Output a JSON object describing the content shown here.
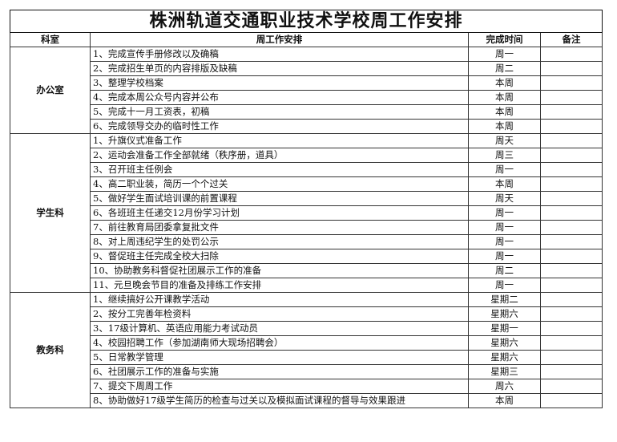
{
  "title": "株洲轨道交通职业技术学校周工作安排",
  "headers": {
    "dept": "科室",
    "task": "周工作安排",
    "time": "完成时间",
    "note": "备注"
  },
  "departments": [
    {
      "name": "办公室",
      "items": [
        {
          "task": "1、完成宣传手册修改以及确稿",
          "time": "周一",
          "note": ""
        },
        {
          "task": "2、完成招生单页的内容排版及缺稿",
          "time": "周二",
          "note": ""
        },
        {
          "task": "3、整理学校档案",
          "time": "本周",
          "note": ""
        },
        {
          "task": "4、完成本周公众号内容并公布",
          "time": "本周",
          "note": ""
        },
        {
          "task": "5、完成十一月工资表，初稿",
          "time": "本周",
          "note": ""
        },
        {
          "task": "6、完成领导交办的临时性工作",
          "time": "本周",
          "note": ""
        }
      ]
    },
    {
      "name": "学生科",
      "items": [
        {
          "task": "1、升旗仪式准备工作",
          "time": "周天",
          "note": ""
        },
        {
          "task": "2、运动会准备工作全部就绪（秩序册，道具）",
          "time": "周三",
          "note": ""
        },
        {
          "task": "3、召开班主任例会",
          "time": "周一",
          "note": ""
        },
        {
          "task": "4、高二职业装，简历一个个过关",
          "time": "本周",
          "note": ""
        },
        {
          "task": "5、做好学生面试培训课的前置课程",
          "time": "周天",
          "note": ""
        },
        {
          "task": "6、各班班主任递交12月份学习计划",
          "time": "周一",
          "note": ""
        },
        {
          "task": "7、前往教育局团委拿复批文件",
          "time": "周一",
          "note": ""
        },
        {
          "task": "8、对上周违纪学生的处罚公示",
          "time": "周一",
          "note": ""
        },
        {
          "task": "9、督促班主任完成全校大扫除",
          "time": "周一",
          "note": ""
        },
        {
          "task": "10、协助教务科督促社团展示工作的准备",
          "time": "周二",
          "note": ""
        },
        {
          "task": "11、元旦晚会节目的准备及排练工作安排",
          "time": "周一",
          "note": ""
        }
      ]
    },
    {
      "name": "教务科",
      "items": [
        {
          "task": "1、继续搞好公开课教学活动",
          "time": "星期二",
          "note": ""
        },
        {
          "task": "2、按分工完善年检资料",
          "time": "星期六",
          "note": ""
        },
        {
          "task": "3、17级计算机、英语应用能力考试动员",
          "time": "星期一",
          "note": ""
        },
        {
          "task": "4、校园招聘工作（参加湖南师大现场招聘会）",
          "time": "星期六",
          "note": ""
        },
        {
          "task": "5、日常教学管理",
          "time": "星期六",
          "note": ""
        },
        {
          "task": "6、社团展示工作的准备与实施",
          "time": "星期三",
          "note": ""
        },
        {
          "task": "7、提交下周周工作",
          "time": "周六",
          "note": ""
        },
        {
          "task": "8、协助做好17级学生简历的检查与过关以及模拟面试课程的督导与效果跟进",
          "time": "本周",
          "note": ""
        }
      ]
    }
  ]
}
